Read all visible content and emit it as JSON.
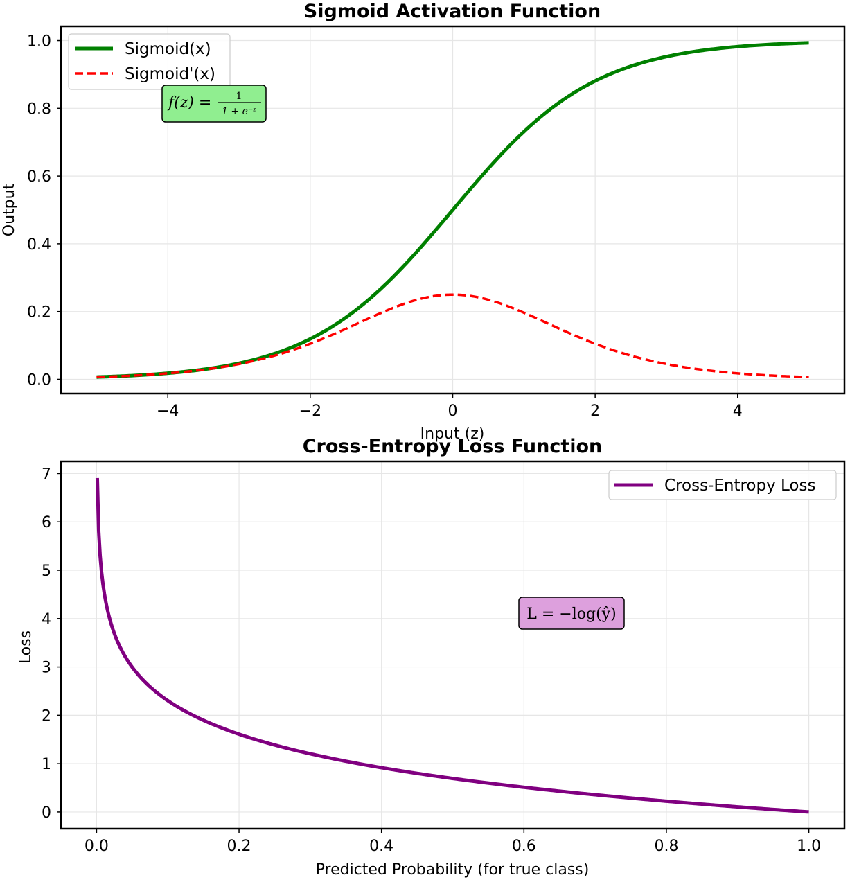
{
  "chart_data": [
    {
      "type": "line",
      "title": "Sigmoid Activation Function",
      "xlabel": "Input (z)",
      "ylabel": "Output",
      "xlim": [
        -5.5,
        5.5
      ],
      "ylim": [
        -0.042,
        1.042
      ],
      "xticks": [
        -4,
        -2,
        0,
        2,
        4
      ],
      "xtick_labels": [
        "−4",
        "−2",
        "0",
        "2",
        "4"
      ],
      "yticks": [
        0.0,
        0.2,
        0.4,
        0.6,
        0.8,
        1.0
      ],
      "ytick_labels": [
        "0.0",
        "0.2",
        "0.4",
        "0.6",
        "0.8",
        "1.0"
      ],
      "grid": true,
      "legend_position": "top-left",
      "x_range": [
        -5,
        5
      ],
      "series": [
        {
          "name": "Sigmoid(x)",
          "function": "sigmoid",
          "color": "#008000",
          "style": "solid"
        },
        {
          "name": "Sigmoid'(x)",
          "function": "sigmoid_derivative",
          "color": "#ff0000",
          "style": "dashed"
        }
      ],
      "x": [
        -5,
        -4,
        -3,
        -2,
        -1,
        0,
        1,
        2,
        3,
        4,
        5
      ],
      "sigmoid_values": [
        0.007,
        0.018,
        0.047,
        0.119,
        0.269,
        0.5,
        0.731,
        0.881,
        0.953,
        0.982,
        0.993
      ],
      "derivative_values": [
        0.007,
        0.018,
        0.045,
        0.105,
        0.197,
        0.25,
        0.197,
        0.105,
        0.045,
        0.018,
        0.007
      ],
      "annotation": {
        "lhs": "f(z) =",
        "numerator": "1",
        "denominator": "1 + e⁻ᶻ",
        "bg_color": "#90ee90"
      }
    },
    {
      "type": "line",
      "title": "Cross-Entropy Loss Function",
      "xlabel": "Predicted Probability (for true class)",
      "ylabel": "Loss",
      "xlim": [
        -0.05,
        1.05
      ],
      "ylim": [
        -0.345,
        7.25
      ],
      "xticks": [
        0.0,
        0.2,
        0.4,
        0.6,
        0.8,
        1.0
      ],
      "xtick_labels": [
        "0.0",
        "0.2",
        "0.4",
        "0.6",
        "0.8",
        "1.0"
      ],
      "yticks": [
        0,
        1,
        2,
        3,
        4,
        5,
        6,
        7
      ],
      "ytick_labels": [
        "0",
        "1",
        "2",
        "3",
        "4",
        "5",
        "6",
        "7"
      ],
      "grid": true,
      "legend_position": "top-right",
      "x_range": [
        0.001,
        1.0
      ],
      "series": [
        {
          "name": "Cross-Entropy Loss",
          "function": "neg_log",
          "color": "#800080",
          "style": "solid"
        }
      ],
      "x": [
        0.001,
        0.01,
        0.05,
        0.1,
        0.2,
        0.4,
        0.6,
        0.8,
        1.0
      ],
      "loss_values": [
        6.91,
        4.61,
        3.0,
        2.3,
        1.61,
        0.92,
        0.51,
        0.22,
        0.0
      ],
      "annotation": {
        "text": "L = −log(ŷ)",
        "bg_color": "#dda0dd"
      }
    }
  ]
}
